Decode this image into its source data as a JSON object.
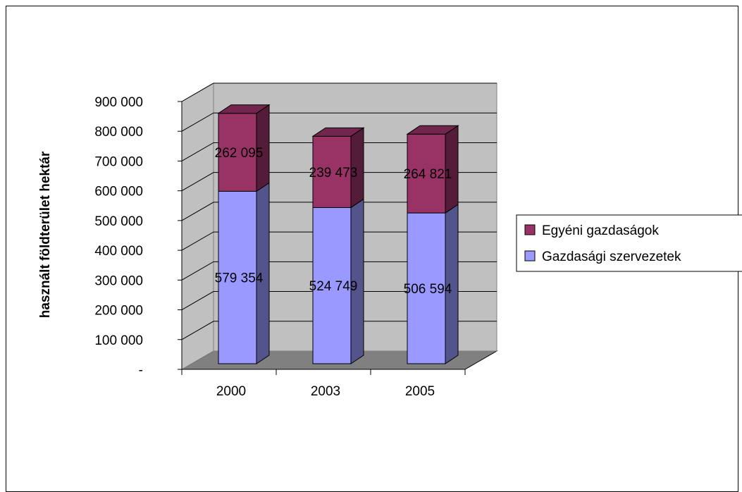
{
  "chart_data": {
    "type": "bar",
    "stacked": true,
    "three_d": true,
    "categories": [
      "2000",
      "2003",
      "2005"
    ],
    "series": [
      {
        "name": "Gazdasági szervezetek",
        "values": [
          579354,
          524749,
          506594
        ],
        "labels": [
          "579 354",
          "524 749",
          "506 594"
        ],
        "color": "#9999ff"
      },
      {
        "name": "Egyéni gazdaságok",
        "values": [
          262095,
          239473,
          264821
        ],
        "labels": [
          "262 095",
          "239 473",
          "264 821"
        ],
        "color": "#993366"
      }
    ],
    "ylabel": "használt földterület hektár",
    "xlabel": "",
    "ylim": [
      0,
      900000
    ],
    "yticks": [
      0,
      100000,
      200000,
      300000,
      400000,
      500000,
      600000,
      700000,
      800000,
      900000
    ],
    "ytick_labels": [
      "-",
      "100 000",
      "200 000",
      "300 000",
      "400 000",
      "500 000",
      "600 000",
      "700 000",
      "800 000",
      "900 000"
    ],
    "grid": true,
    "legend_position": "right",
    "colors": {
      "plot_wall": "#c0c0c0",
      "floor": "#808080",
      "grid": "#000000"
    }
  }
}
